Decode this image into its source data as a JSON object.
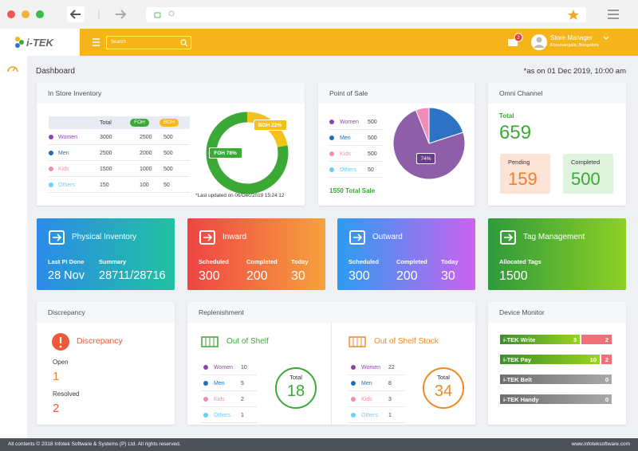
{
  "header": {
    "logo": "i-TEK",
    "search_placeholder": "Search",
    "notification_count": 2,
    "user_name": "Store Manager",
    "user_location": "Koramangala, Bangalore"
  },
  "page": {
    "title": "Dashboard",
    "as_of": "*as on 01 Dec 2019, 10:00 am"
  },
  "categories": [
    {
      "label": "Women",
      "color": "#8e44ad"
    },
    {
      "label": "Men",
      "color": "#1f6fb8"
    },
    {
      "label": "Kids",
      "color": "#f28bb5"
    },
    {
      "label": "Others",
      "color": "#6ccff6"
    }
  ],
  "in_store_inventory": {
    "title": "In Store Inventory",
    "columns": [
      {
        "label": "Total"
      },
      {
        "label": "FOH",
        "color": "#3aa935"
      },
      {
        "label": "BOH",
        "color": "#f2b81c"
      }
    ],
    "rows": [
      [
        3000,
        2500,
        500
      ],
      [
        2500,
        2000,
        500
      ],
      [
        1500,
        1000,
        500
      ],
      [
        150,
        100,
        50
      ]
    ],
    "donut": [
      {
        "value": 78,
        "label": "FOH 78%",
        "color": "#3aa935"
      },
      {
        "value": 22,
        "label": "BOH 22%",
        "color": "#f2c31a"
      }
    ],
    "note": "*Last updated on 06/Dec/2019 15:24:12"
  },
  "point_of_sale": {
    "title": "Point of Sale",
    "values": [
      500,
      500,
      500,
      50
    ],
    "total": "1550 Total Sale",
    "pie": [
      {
        "value": 20,
        "color": "#2d72c4"
      },
      {
        "value": 74,
        "label": "74%",
        "color": "#8e5ea8"
      },
      {
        "value": 6,
        "color": "#f08cb8"
      }
    ]
  },
  "omni_channel": {
    "title": "Omni Channel",
    "total_label": "Total",
    "total": 659,
    "pending_label": "Pending",
    "pending": 159,
    "completed_label": "Completed",
    "completed": 500
  },
  "cards": [
    {
      "title": "Physical Inventory",
      "stats": [
        {
          "label": "Last PI Done",
          "value": "28 Nov"
        },
        {
          "label": "Summary",
          "value": "28711/28716"
        }
      ]
    },
    {
      "title": "Inward",
      "stats": [
        {
          "label": "Scheduled",
          "value": 300
        },
        {
          "label": "Completed",
          "value": 200
        },
        {
          "label": "Today",
          "value": 30
        }
      ]
    },
    {
      "title": "Outward",
      "stats": [
        {
          "label": "Scheduled",
          "value": 300
        },
        {
          "label": "Completed",
          "value": 200
        },
        {
          "label": "Today",
          "value": 30
        }
      ]
    },
    {
      "title": "Tag Management",
      "stats": [
        {
          "label": "Allocated Tags",
          "value": 1500
        }
      ]
    }
  ],
  "discrepancy": {
    "title": "Discrepancy",
    "heading": "Discrepancy",
    "open_label": "Open",
    "open": 1,
    "resolved_label": "Resolved",
    "resolved": 2
  },
  "replenishment": {
    "title": "Replenishment",
    "panels": [
      {
        "title": "Out of Shelf",
        "color": "#3aa935",
        "values": [
          10,
          5,
          2,
          1
        ],
        "total_label": "Total",
        "total": 18
      },
      {
        "title": "Out of Shelf Stock",
        "color": "#f08a24",
        "values": [
          22,
          8,
          3,
          1
        ],
        "total_label": "Total",
        "total": 34
      }
    ]
  },
  "device_monitor": {
    "title": "Device Monitor",
    "devices": [
      {
        "name": "i-TEK Write",
        "active": 3,
        "inactive": 2
      },
      {
        "name": "i-TEK Pay",
        "active": 10,
        "inactive": 2
      },
      {
        "name": "i-TEK Belt",
        "active": 0
      },
      {
        "name": "i-TEK Handy",
        "active": 0
      }
    ]
  },
  "footer": {
    "copyright": "All contents © 2018 Infotek Software & Systems (P) Ltd. All rights reserved.",
    "website": "www.infoteksoftware.com"
  }
}
